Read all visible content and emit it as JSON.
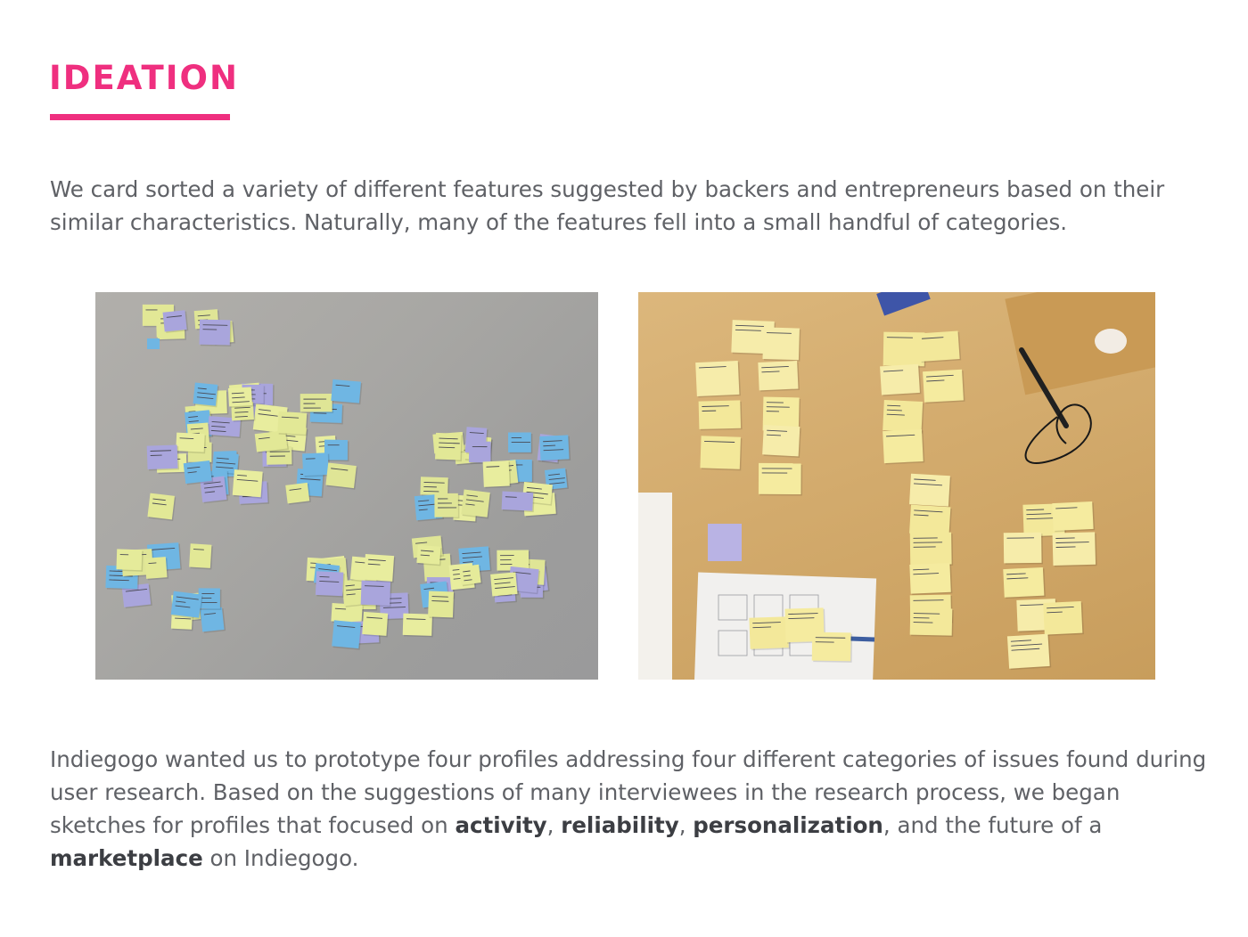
{
  "section": {
    "title": "IDEATION",
    "accent_color": "#ef2f7f"
  },
  "intro": {
    "text": "We card sorted a variety of different features suggested by backers and entrepreneurs based on their similar characteristics. Naturally, many of the features fell into a small handful of categories."
  },
  "photos": {
    "left": "sticky-notes-on-wall-photo",
    "right": "sticky-notes-on-table-photo"
  },
  "body": {
    "part1": "Indiegogo wanted us to prototype four profiles addressing four different categories of issues found during user research. Based on the suggestions of many interviewees in the research process, we began sketches for profiles that focused on ",
    "bold1": "activity",
    "sep1": ", ",
    "bold2": "reliability",
    "sep2": ", ",
    "bold3": "personalization",
    "part2": ", and the future of a ",
    "bold4": "marketplace",
    "part3": " on Indiegogo."
  }
}
